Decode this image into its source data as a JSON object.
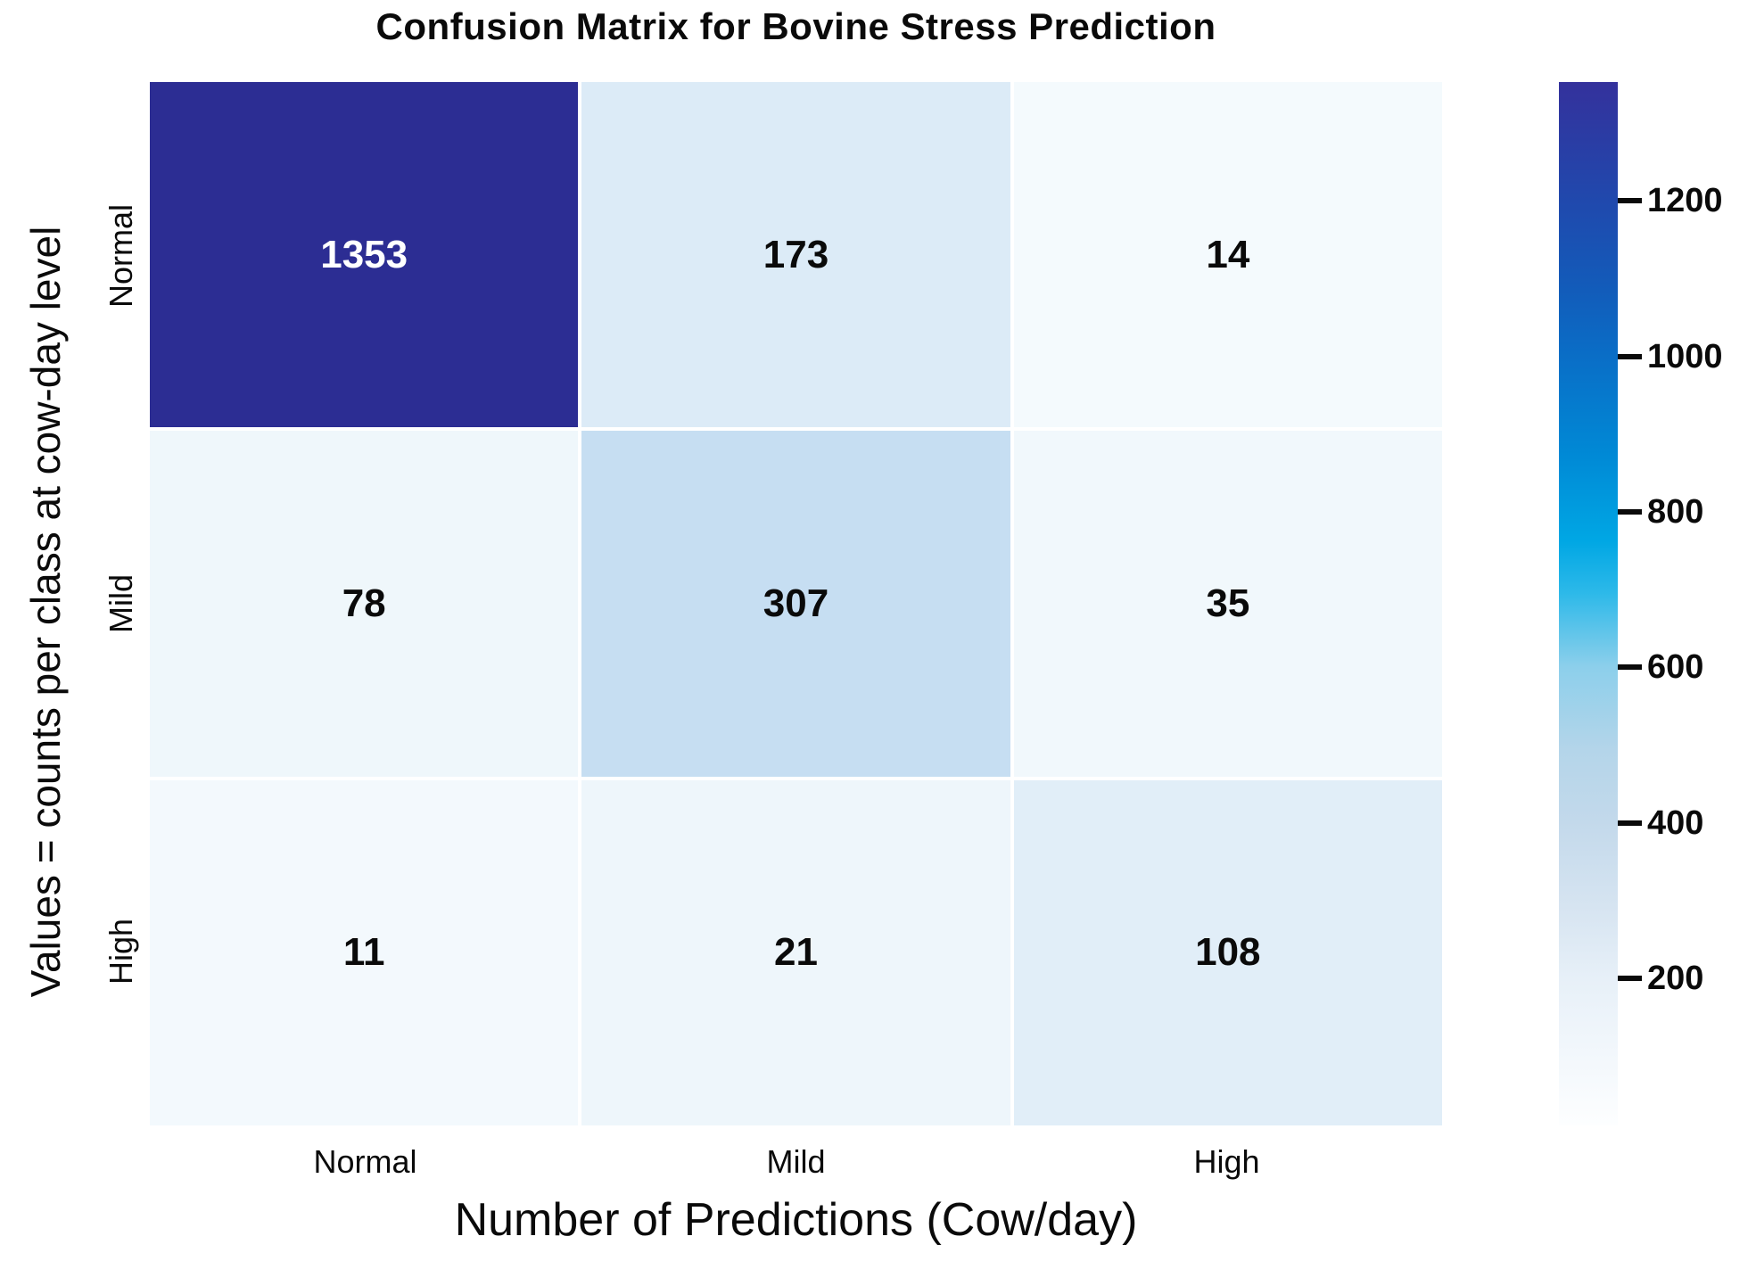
{
  "chart_data": {
    "type": "heatmap",
    "title": "Confusion Matrix for Bovine Stress Prediction",
    "xlabel": "Number of Predictions (Cow/day)",
    "ylabel": "Values = counts per class at cow-day level",
    "x_categories": [
      "Normal",
      "Mild",
      "High"
    ],
    "y_categories": [
      "Normal",
      "Mild",
      "High"
    ],
    "matrix": [
      [
        1353,
        173,
        14
      ],
      [
        78,
        307,
        35
      ],
      [
        11,
        21,
        108
      ]
    ],
    "cell_colors": [
      [
        "#2c2d93",
        "#dcebf7",
        "#f4fafd"
      ],
      [
        "#eff7fb",
        "#c6def2",
        "#f1f8fc"
      ],
      [
        "#f3f9fd",
        "#eef6fb",
        "#e1eef8"
      ]
    ],
    "cell_text_colors": [
      [
        "#ffffff",
        "#0a0a0a",
        "#0a0a0a"
      ],
      [
        "#0a0a0a",
        "#0a0a0a",
        "#0a0a0a"
      ],
      [
        "#0a0a0a",
        "#0a0a0a",
        "#0a0a0a"
      ]
    ],
    "grid": false,
    "legend_position": "right-colorbar",
    "colorbar": {
      "scale_min": 11,
      "scale_max": 1353,
      "ticks": [
        "1200",
        "1000",
        "800",
        "600",
        "400",
        "200"
      ],
      "tick_values": [
        1200,
        1000,
        800,
        600,
        400,
        200
      ],
      "gradient_stops": [
        {
          "pos": 0,
          "color": "#34319c"
        },
        {
          "pos": 12,
          "color": "#1f4aae"
        },
        {
          "pos": 20,
          "color": "#125cba"
        },
        {
          "pos": 26,
          "color": "#0a6dc6"
        },
        {
          "pos": 36,
          "color": "#008ad6"
        },
        {
          "pos": 44,
          "color": "#00a7e4"
        },
        {
          "pos": 49,
          "color": "#2db9e9"
        },
        {
          "pos": 56,
          "color": "#8ccfeb"
        },
        {
          "pos": 64,
          "color": "#b4d5ea"
        },
        {
          "pos": 71,
          "color": "#c3d9eb"
        },
        {
          "pos": 79,
          "color": "#d6e4f1"
        },
        {
          "pos": 86,
          "color": "#e7f0f8"
        },
        {
          "pos": 100,
          "color": "#fdfeff"
        }
      ]
    }
  }
}
